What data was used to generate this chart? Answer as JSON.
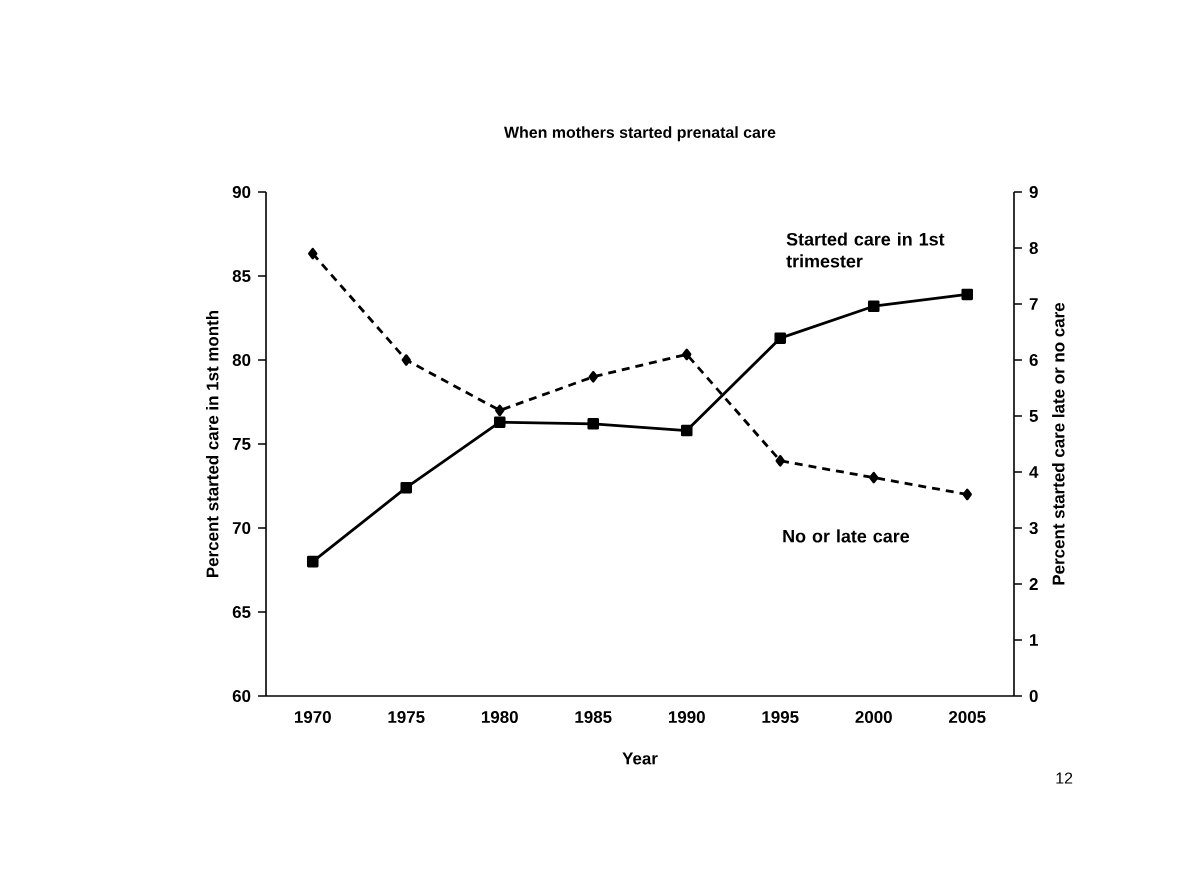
{
  "chart_data": {
    "type": "line",
    "title": "When mothers started prenatal care",
    "xlabel": "Year",
    "ylabel": "Percent started care in 1st month",
    "y2label": "Percent started care late or no care",
    "categories": [
      "1970",
      "1975",
      "1980",
      "1985",
      "1990",
      "1995",
      "2000",
      "2005"
    ],
    "series": [
      {
        "name": "Started care in 1st trimester",
        "color": "#000000",
        "marker": "square",
        "line_style": "solid",
        "values": [
          68,
          72.4,
          76.3,
          76.2,
          75.8,
          81.3,
          83.2,
          83.9
        ]
      },
      {
        "name": "No or late care",
        "color": "#000000",
        "marker": "diamond",
        "line_style": "dashed",
        "axis": "y2",
        "values": [
          7.9,
          6.0,
          5.1,
          5.7,
          6.1,
          4.2,
          3.9,
          3.6
        ]
      }
    ],
    "ylim": [
      60,
      90
    ],
    "yticks": [
      60,
      65,
      70,
      75,
      80,
      85,
      90
    ],
    "y2lim": [
      0,
      9
    ],
    "y2ticks": [
      0,
      1,
      2,
      3,
      4,
      5,
      6,
      7,
      8,
      9
    ],
    "grid": false,
    "legend": false,
    "annotations": [
      "12"
    ]
  }
}
